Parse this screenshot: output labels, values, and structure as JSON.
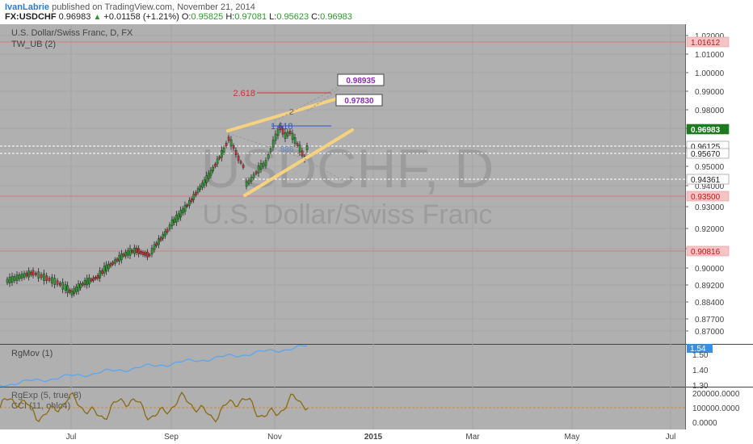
{
  "header": {
    "author": "IvanLabrie",
    "published_text": "published on TradingView.com, November 21, 2014",
    "symbol": "FX:USDCHF",
    "last": "0.96983",
    "change": "+0.01158 (+1.21%)",
    "o_label": "O:",
    "o": "0.95825",
    "h_label": "H:",
    "h": "0.97081",
    "l_label": "L:",
    "l": "0.95623",
    "c_label": "C:",
    "c": "0.96983"
  },
  "main": {
    "title": "U.S. Dollar/Swiss Franc, D, FX",
    "indicator": "TW_UB (2)",
    "watermark_symbol": "USDCHF, D",
    "watermark_name": "U.S. Dollar/Swiss Franc",
    "price_axis": [
      "1.02000",
      "1.01000",
      "1.00000",
      "0.99000",
      "0.98000",
      "0.97000",
      "0.96000",
      "0.95000",
      "0.94000",
      "0.93000",
      "0.92000",
      "0.91000",
      "0.90000",
      "0.89200",
      "0.88400",
      "0.87700",
      "0.87000"
    ],
    "level_labels": [
      {
        "text": "1.01612",
        "kind": "red"
      },
      {
        "text": "0.96983",
        "kind": "green"
      },
      {
        "text": "0.96125",
        "kind": "white"
      },
      {
        "text": "0.95670",
        "kind": "white"
      },
      {
        "text": "0.94361",
        "kind": "white"
      },
      {
        "text": "0.93500",
        "kind": "red"
      },
      {
        "text": "0.90816",
        "kind": "red"
      }
    ],
    "fib_labels": [
      "2.618",
      "2",
      "1.618",
      ".886"
    ],
    "callouts": [
      "0.98935",
      "0.97830"
    ]
  },
  "rgmov": {
    "title": "RgMov (1)",
    "value": "1.54",
    "axis": [
      "1.50",
      "1.40",
      "1.30"
    ]
  },
  "rgexp": {
    "title": "RgExp (5, true, 8)",
    "subtitle": "CCI (11, ohlc4)",
    "axis": [
      "200000.0000",
      "100000.0000",
      "0.0000"
    ]
  },
  "time_axis": [
    "Jul",
    "Sep",
    "Nov",
    "2015",
    "Mar",
    "May",
    "Jul"
  ],
  "colors": {
    "bull": "#2c9a2c",
    "bear": "#d23030",
    "panel_bg": "#b0b0b0",
    "wedge": "#f6d27e",
    "rgmov_line": "#5aa7f0",
    "rgexp_line": "#8a6a12"
  }
}
